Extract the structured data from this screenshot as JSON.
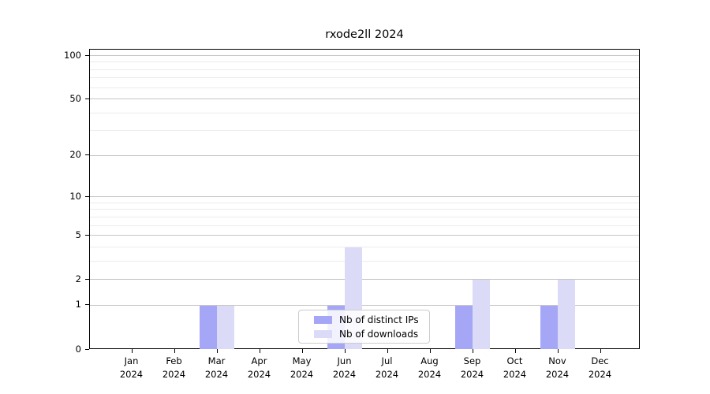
{
  "chart_data": {
    "type": "bar",
    "title": "rxode2ll 2024",
    "categories": [
      "Jan",
      "Feb",
      "Mar",
      "Apr",
      "May",
      "Jun",
      "Jul",
      "Aug",
      "Sep",
      "Oct",
      "Nov",
      "Dec"
    ],
    "category_year_line": "2024",
    "series": [
      {
        "name": "Nb of distinct IPs",
        "color": "#a6a6f7",
        "values": [
          0,
          0,
          1,
          0,
          0,
          1,
          0,
          0,
          1,
          0,
          1,
          0
        ]
      },
      {
        "name": "Nb of downloads",
        "color": "#dbdbf8",
        "values": [
          0,
          0,
          1,
          0,
          0,
          4,
          0,
          0,
          2,
          0,
          2,
          0
        ]
      }
    ],
    "y_axis": {
      "scale": "log1p",
      "tick_labels": [
        "0",
        "1",
        "2",
        "5",
        "10",
        "20",
        "50",
        "100"
      ],
      "tick_values": [
        0,
        1,
        2,
        5,
        10,
        20,
        50,
        100
      ],
      "minor_gridline_values": [
        3,
        4,
        6,
        7,
        8,
        9,
        30,
        40,
        60,
        70,
        80,
        90
      ],
      "range_top_value": 111
    },
    "legend": {
      "position": "lower center"
    },
    "grid": "horizontal",
    "colors": {
      "grid_major": "#c6c6c6",
      "grid_minor": "#ececec",
      "spine": "#000000",
      "text": "#000000",
      "legend_border": "#cccccc"
    }
  }
}
